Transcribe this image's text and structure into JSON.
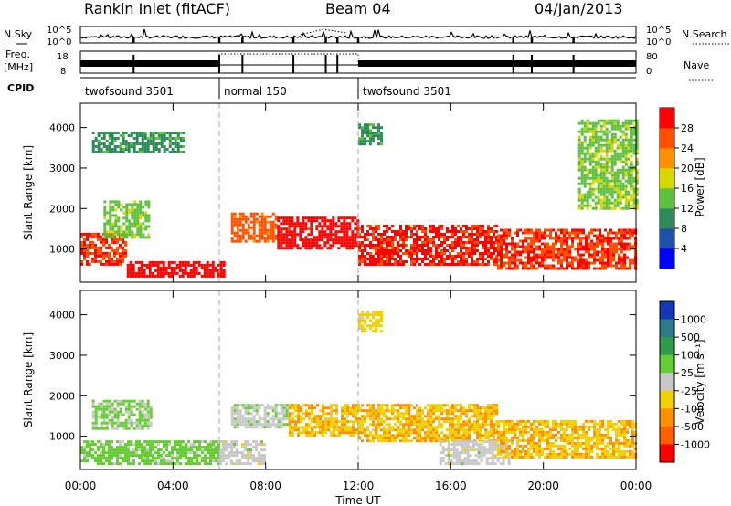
{
  "header": {
    "title": "Rankin Inlet (fitACF)",
    "beam": "Beam 04",
    "date": "04/Jan/2013"
  },
  "top_panels": {
    "nsky_label": "N.Sky",
    "nsky_ticks": [
      "10^5",
      "10^0"
    ],
    "nsearch_label": "N.Search",
    "nsearch_ticks": [
      "10^5",
      "10^0"
    ],
    "freq_label": "Freq.",
    "freq_unit": "[MHz]",
    "freq_ticks": [
      "18",
      "8"
    ],
    "nave_label": "Nave",
    "nave_ticks": [
      "80",
      "0"
    ],
    "cpid_label": "CPID",
    "cpid_segments": [
      {
        "label": "twofsound 3501",
        "start_hour": 0,
        "end_hour": 6
      },
      {
        "label": "normal 150",
        "start_hour": 6,
        "end_hour": 12
      },
      {
        "label": "twofsound 3501",
        "start_hour": 12,
        "end_hour": 24
      }
    ]
  },
  "power_panel": {
    "ylabel": "Slant Range [km]",
    "yticks": [
      "1000",
      "2000",
      "3000",
      "4000"
    ],
    "colorbar_label": "Power [dB]",
    "colorbar_ticks": [
      "4",
      "8",
      "12",
      "16",
      "20",
      "24",
      "28"
    ],
    "colors": [
      "#0000ff",
      "#1f4fa8",
      "#2f8a5a",
      "#5fbf3f",
      "#d8d800",
      "#ff9000",
      "#ff5000",
      "#ff0000"
    ]
  },
  "velocity_panel": {
    "ylabel": "Slant Range [km]",
    "yticks": [
      "1000",
      "2000",
      "3000",
      "4000"
    ],
    "colorbar_label": "Velocity [m s⁻¹]",
    "colorbar_ticks": [
      "1000",
      "500",
      "100",
      "25",
      "-25",
      "-100",
      "-500",
      "-1000"
    ],
    "colors": [
      "#1438b4",
      "#2f7a8a",
      "#2f9a4a",
      "#66cc33",
      "#c8c8c8",
      "#f0d000",
      "#ff9000",
      "#ff6000",
      "#ff0000"
    ]
  },
  "x_axis": {
    "xlabel": "Time UT",
    "xticks": [
      "00:00",
      "04:00",
      "08:00",
      "12:00",
      "16:00",
      "20:00",
      "00:00"
    ]
  },
  "chart_data": [
    {
      "type": "heatmap",
      "title": "Rankin Inlet (fitACF)",
      "subtitle": "Beam 04",
      "xlabel": "Time UT",
      "ylabel": "Slant Range [km]",
      "colorbar_label": "Power [dB]",
      "x_range_hours": [
        0,
        24
      ],
      "ylim": [
        180,
        4600
      ],
      "color_range": [
        0,
        30
      ],
      "regions": [
        {
          "t": [
            0.0,
            2.0
          ],
          "r": [
            600,
            1400
          ],
          "value": 26
        },
        {
          "t": [
            1.0,
            3.0
          ],
          "r": [
            1300,
            2200
          ],
          "value": 14
        },
        {
          "t": [
            2.0,
            6.2
          ],
          "r": [
            300,
            700
          ],
          "value": 29
        },
        {
          "t": [
            0.5,
            4.5
          ],
          "r": [
            3400,
            3900
          ],
          "value": 10
        },
        {
          "t": [
            6.5,
            8.5
          ],
          "r": [
            1200,
            1900
          ],
          "value": 24
        },
        {
          "t": [
            8.5,
            12.0
          ],
          "r": [
            1000,
            1800
          ],
          "value": 28
        },
        {
          "t": [
            12.0,
            18.0
          ],
          "r": [
            600,
            1600
          ],
          "value": 27
        },
        {
          "t": [
            18.0,
            24.0
          ],
          "r": [
            500,
            1500
          ],
          "value": 26
        },
        {
          "t": [
            21.5,
            24.0
          ],
          "r": [
            2000,
            4200
          ],
          "value": 14
        },
        {
          "t": [
            12.0,
            13.0
          ],
          "r": [
            3600,
            4100
          ],
          "value": 10
        }
      ]
    },
    {
      "type": "heatmap",
      "xlabel": "Time UT",
      "ylabel": "Slant Range [km]",
      "colorbar_label": "Velocity [m s⁻¹]",
      "x_range_hours": [
        0,
        24
      ],
      "ylim": [
        180,
        4600
      ],
      "color_range": [
        -1000,
        1000
      ],
      "regions": [
        {
          "t": [
            0.0,
            6.0
          ],
          "r": [
            300,
            900
          ],
          "value": 200
        },
        {
          "t": [
            0.5,
            3.0
          ],
          "r": [
            1200,
            1900
          ],
          "value": 150
        },
        {
          "t": [
            6.0,
            8.0
          ],
          "r": [
            300,
            900
          ],
          "value": 0
        },
        {
          "t": [
            6.5,
            9.0
          ],
          "r": [
            1200,
            1800
          ],
          "value": 60
        },
        {
          "t": [
            9.0,
            12.0
          ],
          "r": [
            1000,
            1800
          ],
          "value": -300
        },
        {
          "t": [
            12.0,
            18.0
          ],
          "r": [
            900,
            1800
          ],
          "value": -300
        },
        {
          "t": [
            15.5,
            18.5
          ],
          "r": [
            300,
            900
          ],
          "value": 0
        },
        {
          "t": [
            18.0,
            24.0
          ],
          "r": [
            500,
            1400
          ],
          "value": -300
        },
        {
          "t": [
            12.0,
            13.0
          ],
          "r": [
            3600,
            4100
          ],
          "value": -200
        }
      ]
    }
  ]
}
